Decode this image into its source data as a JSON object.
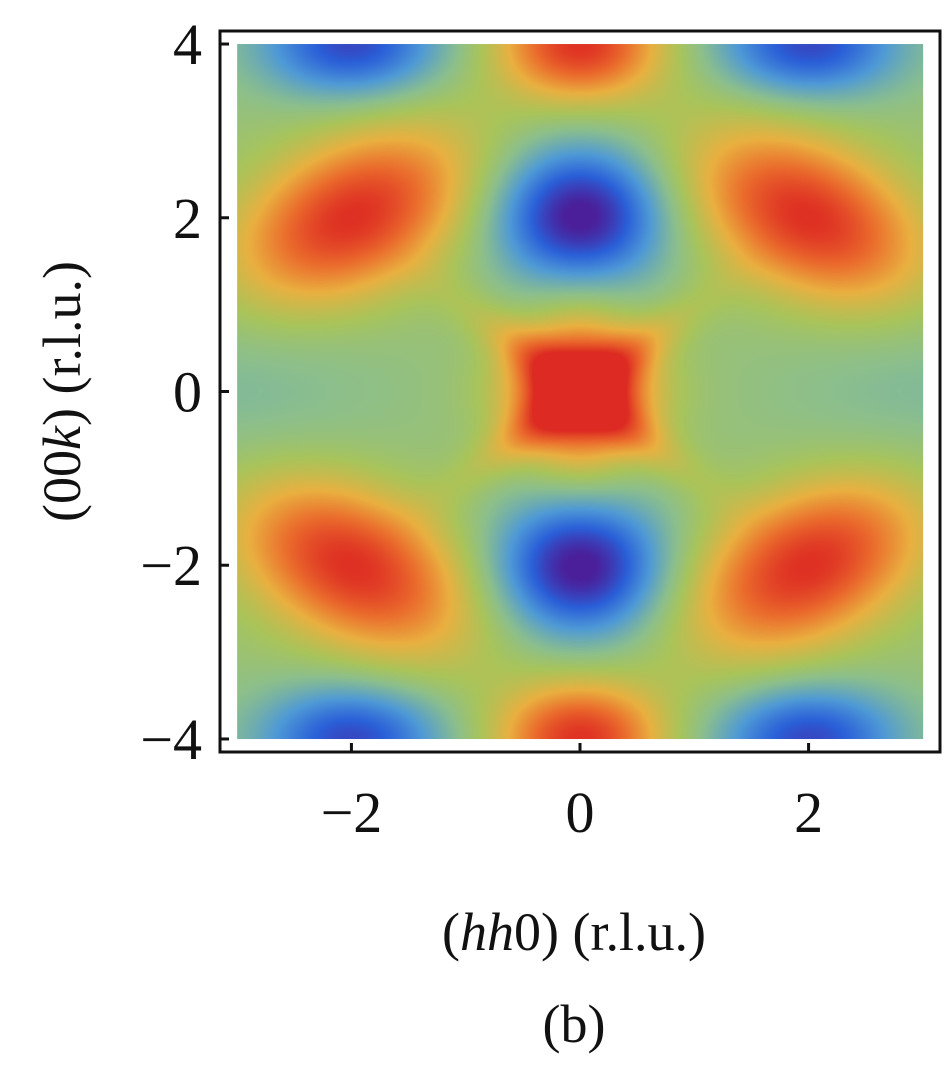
{
  "chart_data": {
    "type": "heatmap",
    "xlabel": {
      "pre": "(",
      "italic": "hh",
      "post": "0) (r.l.u.)"
    },
    "ylabel": {
      "pre": "(00",
      "italic": "k",
      "post": ") (r.l.u.)"
    },
    "panel_label": "(b)",
    "xlim": [
      -3.15,
      3.15
    ],
    "ylim": [
      -4.15,
      4.15
    ],
    "data_extent": {
      "x": [
        -3,
        3
      ],
      "y": [
        -4,
        4
      ]
    },
    "xticks": [
      {
        "value": -2,
        "label": "−2"
      },
      {
        "value": 0,
        "label": "0"
      },
      {
        "value": 2,
        "label": "2"
      }
    ],
    "yticks": [
      {
        "value": 4,
        "label": "4"
      },
      {
        "value": 2,
        "label": "2"
      },
      {
        "value": 0,
        "label": "0"
      },
      {
        "value": -2,
        "label": "−2"
      },
      {
        "value": -4,
        "label": "−4"
      }
    ],
    "features": {
      "maxima": [
        {
          "x": 0,
          "y": 0,
          "label": "center cross"
        },
        {
          "x": -2,
          "y": 2
        },
        {
          "x": 2,
          "y": 2
        },
        {
          "x": -2,
          "y": -2
        },
        {
          "x": 2,
          "y": -2
        },
        {
          "x": 0,
          "y": 4
        },
        {
          "x": 0,
          "y": -4
        }
      ],
      "minima": [
        {
          "x": 0,
          "y": 2
        },
        {
          "x": 0,
          "y": -2
        },
        {
          "x": -2,
          "y": 4
        },
        {
          "x": 2,
          "y": 4
        },
        {
          "x": -2,
          "y": -4
        },
        {
          "x": 2,
          "y": -4
        }
      ]
    },
    "colormap": [
      "#4b1f9a",
      "#2a5fd8",
      "#4f9ad6",
      "#8cbf8c",
      "#a9c45a",
      "#e9b040",
      "#ea6a2c",
      "#dd2a22"
    ],
    "grid": false
  }
}
